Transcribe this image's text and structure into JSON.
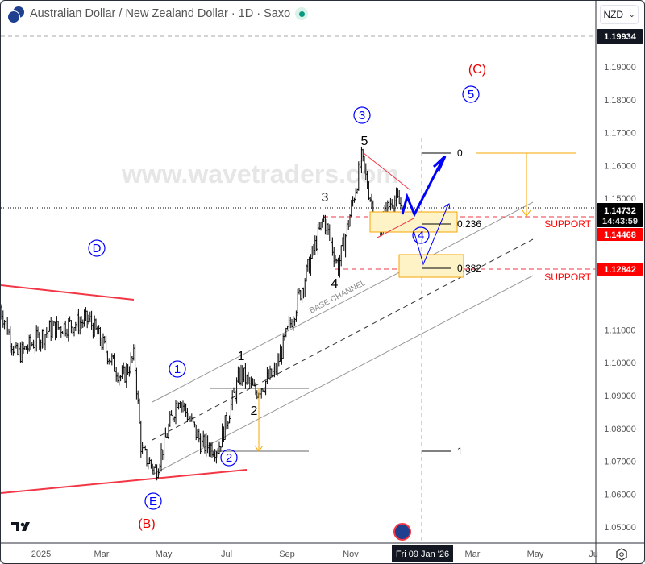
{
  "header": {
    "title": "Australian Dollar / New Zealand Dollar · 1D · Saxo",
    "status_color": "#089981"
  },
  "currency_selector": {
    "value": "NZD"
  },
  "price_axis": {
    "ticks": [
      "1.19000",
      "1.18000",
      "1.17000",
      "1.16000",
      "1.15000",
      "1.11000",
      "1.10000",
      "1.09000",
      "1.08000",
      "1.07000",
      "1.06000",
      "1.05000"
    ],
    "crosshair_price": "1.19934",
    "last_price": "1.14732",
    "countdown": "14:43:59",
    "support_1": "1.14468",
    "support_2": "1.12842"
  },
  "time_axis": {
    "ticks": [
      "2025",
      "Mar",
      "May",
      "Jul",
      "Sep",
      "Nov",
      "Mar",
      "May",
      "Ju"
    ],
    "crosshair_date": "Fri 09 Jan '26"
  },
  "annotations": {
    "C": "(C)",
    "B": "(B)",
    "wave5_circle": "5",
    "wave3_circle": "3",
    "wave4_circle": "4",
    "wave1_circle": "1",
    "wave2_circle": "2",
    "D": "D",
    "E": "E",
    "sub1": "1",
    "sub2": "2",
    "sub3": "3",
    "sub4": "4",
    "sub5": "5",
    "fib0": "0",
    "fib236": "0.236",
    "fib382": "0.382",
    "fib1": "1",
    "support_label": "SUPPORT",
    "channel_label": "BASE CHANNEL",
    "watermark": "www.wavetraders.com"
  },
  "colors": {
    "support": "#f23645",
    "wave": "#0000ff",
    "fib_box": "#f7a600",
    "candle": "#000000"
  },
  "chart_data": {
    "type": "ohlc",
    "symbol": "AUDNZD",
    "interval": "1D",
    "ylim": [
      1.045,
      1.205
    ],
    "path": [
      [
        "2024-11-22",
        1.117
      ],
      [
        "2024-12-08",
        1.102
      ],
      [
        "2025-01-09",
        1.11
      ],
      [
        "2025-02-17",
        1.113
      ],
      [
        "2025-03-21",
        1.095
      ],
      [
        "2025-04-02",
        1.102
      ],
      [
        "2025-04-09",
        1.073
      ],
      [
        "2025-04-23",
        1.067
      ],
      [
        "2025-05-15",
        1.09
      ],
      [
        "2025-06-07",
        1.075
      ],
      [
        "2025-06-23",
        1.074
      ],
      [
        "2025-07-15",
        1.097
      ],
      [
        "2025-07-29",
        1.091
      ],
      [
        "2025-08-17",
        1.097
      ],
      [
        "2025-09-22",
        1.132
      ],
      [
        "2025-10-04",
        1.144
      ],
      [
        "2025-10-18",
        1.129
      ],
      [
        "2025-10-27",
        1.141
      ],
      [
        "2025-11-10",
        1.162
      ],
      [
        "2025-11-26",
        1.14
      ],
      [
        "2025-12-10",
        1.15
      ],
      [
        "2025-12-21",
        1.1473
      ]
    ]
  }
}
